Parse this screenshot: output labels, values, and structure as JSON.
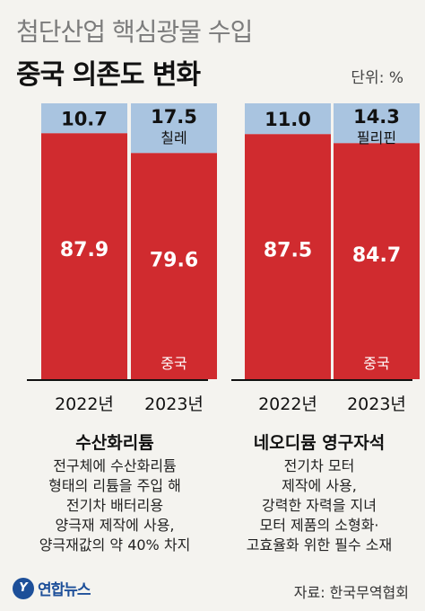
{
  "header": {
    "title_line1": "첨단산업 핵심광물 수입",
    "title_line2": "중국 의존도 변화",
    "unit": "단위: %"
  },
  "colors": {
    "china": "#d02b2f",
    "other": "#a9c4e0",
    "background": "#f4f3ef"
  },
  "chart_data": [
    {
      "type": "bar",
      "stacked": true,
      "categories": [
        "2022년",
        "2023년"
      ],
      "series": [
        {
          "name": "중국",
          "values": [
            87.9,
            79.6
          ]
        },
        {
          "name": "",
          "values": [
            10.7,
            17.5
          ]
        }
      ],
      "top_labels": [
        "",
        "칠레"
      ],
      "china_label": "중국",
      "title": "수산화리튬",
      "description": [
        "전구체에 수산화리튬",
        "형태의 리튬을 주입 해",
        "전기차 배터리용",
        "양극재 제작에 사용,",
        "양극재값의 약 40% 차지"
      ]
    },
    {
      "type": "bar",
      "stacked": true,
      "categories": [
        "2022년",
        "2023년"
      ],
      "series": [
        {
          "name": "중국",
          "values": [
            87.5,
            84.7
          ]
        },
        {
          "name": "",
          "values": [
            11.0,
            14.3
          ]
        }
      ],
      "top_labels": [
        "",
        "필리핀"
      ],
      "china_label": "중국",
      "title": "네오디뮴 영구자석",
      "description": [
        "전기차 모터",
        "제작에 사용,",
        "강력한 자력을 지녀",
        "모터 제품의 소형화·",
        "고효율화 위한 필수 소재"
      ]
    }
  ],
  "footer": {
    "logo_text": "연합뉴스",
    "source": "자료: 한국무역협회"
  }
}
